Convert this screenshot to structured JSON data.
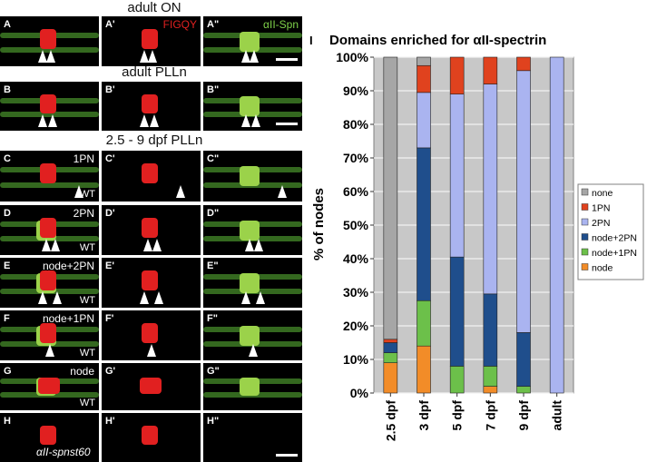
{
  "headings": {
    "adult_on": "adult ON",
    "adult_plln": "adult PLLn",
    "larval": "2.5 - 9 dpf PLLn"
  },
  "panels": [
    {
      "label": "A",
      "row": 0,
      "col": 0
    },
    {
      "label": "A'",
      "row": 0,
      "col": 1,
      "stain": "FIGQY",
      "stain_color": "#e02020"
    },
    {
      "label": "A\"",
      "row": 0,
      "col": 2,
      "stain": "αII-Spn",
      "stain_color": "#7fd24a"
    },
    {
      "label": "B",
      "row": 1,
      "col": 0
    },
    {
      "label": "B'",
      "row": 1,
      "col": 1
    },
    {
      "label": "B\"",
      "row": 1,
      "col": 2
    },
    {
      "label": "C",
      "row": 2,
      "col": 0,
      "cond": "1PN",
      "wt": "WT"
    },
    {
      "label": "C'",
      "row": 2,
      "col": 1
    },
    {
      "label": "C\"",
      "row": 2,
      "col": 2
    },
    {
      "label": "D",
      "row": 3,
      "col": 0,
      "cond": "2PN",
      "wt": "WT"
    },
    {
      "label": "D'",
      "row": 3,
      "col": 1
    },
    {
      "label": "D\"",
      "row": 3,
      "col": 2
    },
    {
      "label": "E",
      "row": 4,
      "col": 0,
      "cond": "node+2PN",
      "wt": "WT"
    },
    {
      "label": "E'",
      "row": 4,
      "col": 1
    },
    {
      "label": "E\"",
      "row": 4,
      "col": 2
    },
    {
      "label": "F",
      "row": 5,
      "col": 0,
      "cond": "node+1PN",
      "wt": "WT"
    },
    {
      "label": "F'",
      "row": 5,
      "col": 1
    },
    {
      "label": "F\"",
      "row": 5,
      "col": 2
    },
    {
      "label": "G",
      "row": 6,
      "col": 0,
      "cond": "node",
      "wt": "WT"
    },
    {
      "label": "G'",
      "row": 6,
      "col": 1
    },
    {
      "label": "G\"",
      "row": 6,
      "col": 2
    },
    {
      "label": "H",
      "row": 7,
      "col": 0,
      "mutant": "αII-spnst60"
    },
    {
      "label": "H'",
      "row": 7,
      "col": 1
    },
    {
      "label": "H\"",
      "row": 7,
      "col": 2
    }
  ],
  "chart_data": {
    "type": "bar",
    "panel_label": "I",
    "title": "Domains enriched for αII-spectrin",
    "ylabel": "% of nodes",
    "ylim": [
      0,
      100
    ],
    "yticks": [
      "0%",
      "10%",
      "20%",
      "30%",
      "40%",
      "50%",
      "60%",
      "70%",
      "80%",
      "90%",
      "100%"
    ],
    "categories": [
      "2.5 dpf",
      "3 dpf",
      "5 dpf",
      "7 dpf",
      "9 dpf",
      "adult"
    ],
    "stacking": "stacked-100",
    "grid": true,
    "legend_position": "right",
    "series": [
      {
        "name": "node",
        "color": "#f28c28",
        "values": [
          9,
          14,
          0,
          2,
          0,
          0
        ]
      },
      {
        "name": "node+1PN",
        "color": "#6cc04a",
        "values": [
          3,
          13.5,
          8,
          6,
          2,
          0
        ]
      },
      {
        "name": "node+2PN",
        "color": "#1f4e8c",
        "values": [
          3,
          45.5,
          32.5,
          21.5,
          16,
          0
        ]
      },
      {
        "name": "2PN",
        "color": "#aab4f0",
        "values": [
          0,
          16.5,
          48.5,
          62.5,
          78,
          100
        ]
      },
      {
        "name": "1PN",
        "color": "#e0421e",
        "values": [
          1,
          8,
          11,
          8,
          4,
          0
        ]
      },
      {
        "name": "none",
        "color": "#a6a6a6",
        "values": [
          84,
          2.5,
          0,
          0,
          0,
          0
        ]
      }
    ],
    "legend_order": [
      "none",
      "1PN",
      "2PN",
      "node+2PN",
      "node+1PN",
      "node"
    ]
  }
}
